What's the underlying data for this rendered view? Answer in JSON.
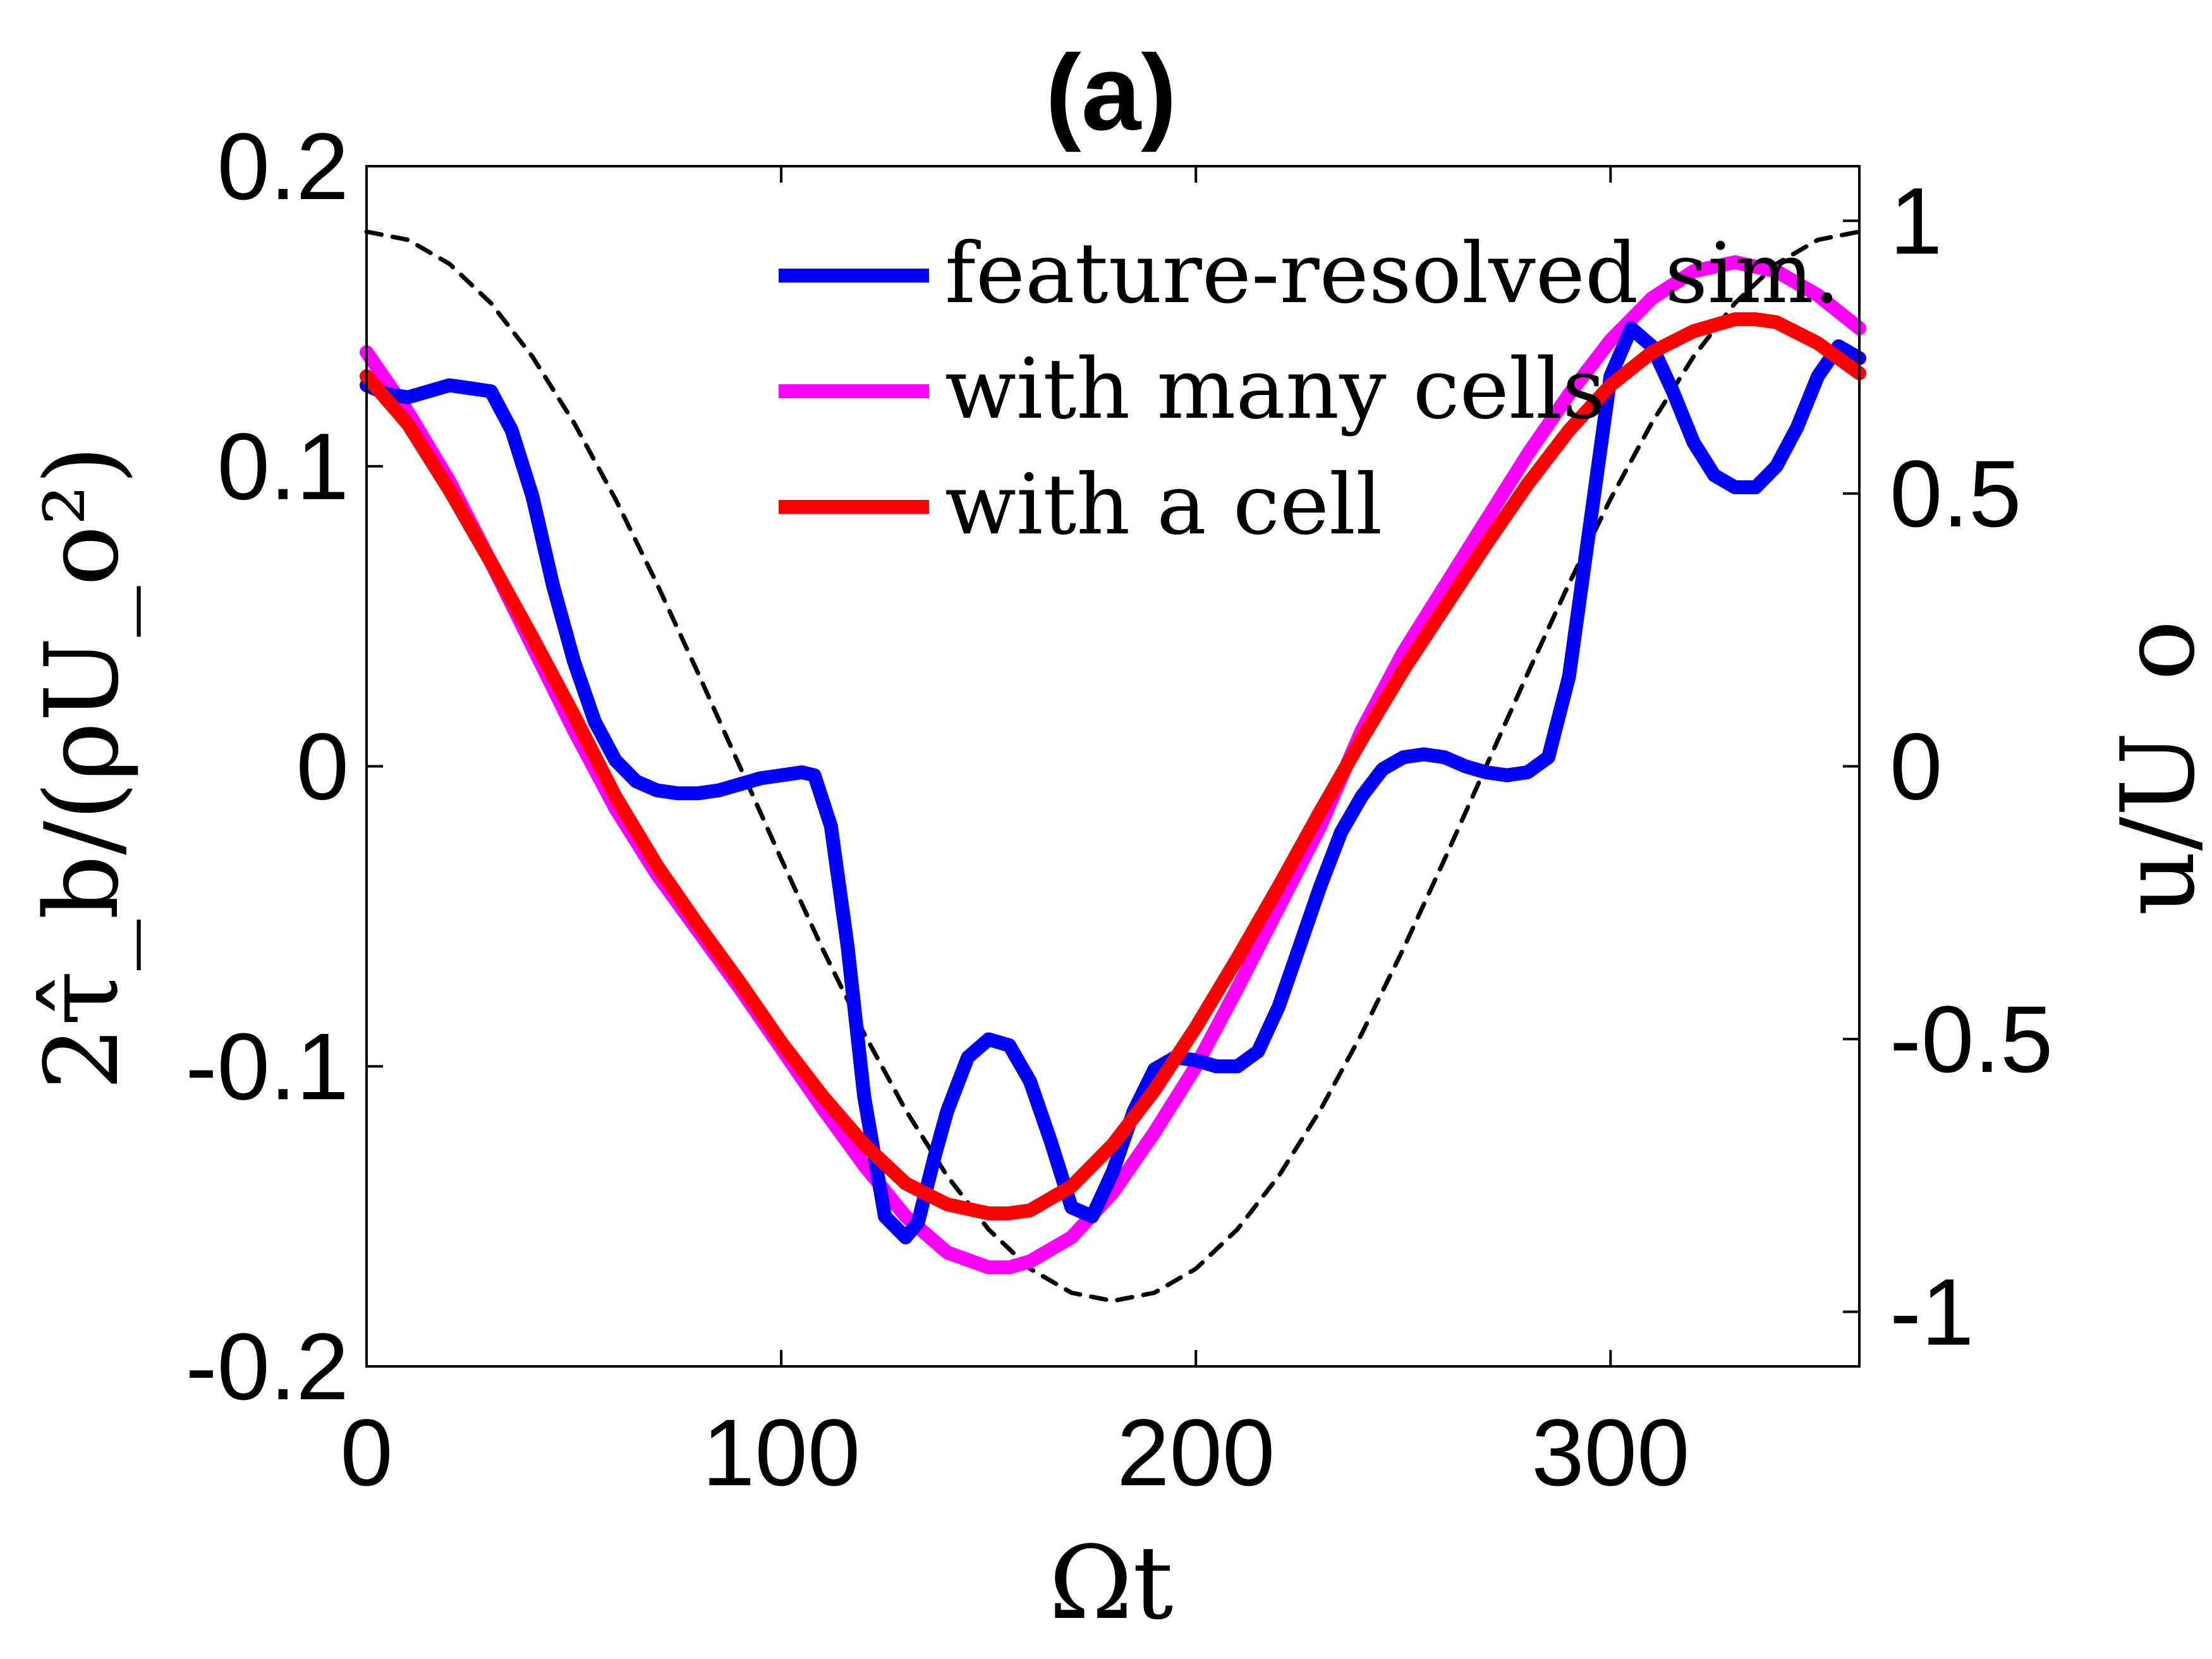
{
  "chart_data": {
    "type": "line",
    "title": "(a)",
    "xlabel": "Ωt",
    "ylabel": "2τ̂_b/(ρU_o²)",
    "y2label": "u/U_o",
    "xlim": [
      0,
      360
    ],
    "ylim": [
      -0.2,
      0.2
    ],
    "y2lim": [
      -1.1,
      1.1
    ],
    "xticks": [
      "0",
      "100",
      "200",
      "300"
    ],
    "xtick_values": [
      0,
      100,
      200,
      300
    ],
    "yticks": [
      "-0.2",
      "-0.1",
      "0",
      "0.1",
      "0.2"
    ],
    "ytick_values": [
      -0.2,
      -0.1,
      0,
      0.1,
      0.2
    ],
    "y2ticks": [
      "-1",
      "-0.5",
      "0",
      "0.5",
      "1"
    ],
    "y2tick_values": [
      -1,
      -0.5,
      0,
      0.5,
      1
    ],
    "grid": false,
    "legend_position": "top-right",
    "series": [
      {
        "name": "feature-resolved sim.",
        "color": "#0000ff",
        "axis": "left",
        "x": [
          0,
          5,
          10,
          15,
          20,
          25,
          30,
          35,
          40,
          45,
          50,
          55,
          60,
          65,
          70,
          75,
          80,
          85,
          90,
          95,
          100,
          105,
          108,
          112,
          116,
          120,
          125,
          130,
          133,
          137,
          140,
          145,
          150,
          155,
          160,
          165,
          170,
          175,
          180,
          185,
          190,
          195,
          200,
          205,
          210,
          215,
          220,
          225,
          230,
          235,
          240,
          245,
          250,
          255,
          260,
          265,
          270,
          275,
          280,
          285,
          290,
          295,
          300,
          305,
          310,
          315,
          320,
          325,
          330,
          335,
          340,
          345,
          350,
          355,
          360
        ],
        "y": [
          0.127,
          0.124,
          0.123,
          0.125,
          0.127,
          0.126,
          0.125,
          0.112,
          0.09,
          0.06,
          0.035,
          0.015,
          0.002,
          -0.005,
          -0.008,
          -0.009,
          -0.009,
          -0.008,
          -0.006,
          -0.004,
          -0.003,
          -0.002,
          -0.003,
          -0.02,
          -0.06,
          -0.11,
          -0.15,
          -0.157,
          -0.152,
          -0.13,
          -0.115,
          -0.097,
          -0.091,
          -0.093,
          -0.105,
          -0.125,
          -0.147,
          -0.15,
          -0.135,
          -0.115,
          -0.101,
          -0.097,
          -0.098,
          -0.1,
          -0.1,
          -0.095,
          -0.08,
          -0.06,
          -0.04,
          -0.022,
          -0.01,
          -0.001,
          0.003,
          0.004,
          0.003,
          0.0,
          -0.002,
          -0.003,
          -0.002,
          0.003,
          0.03,
          0.08,
          0.13,
          0.146,
          0.14,
          0.125,
          0.108,
          0.097,
          0.093,
          0.093,
          0.1,
          0.113,
          0.13,
          0.14,
          0.136
        ]
      },
      {
        "name": "with many cells",
        "color": "#ff00ff",
        "axis": "left",
        "x": [
          0,
          10,
          20,
          30,
          40,
          50,
          60,
          70,
          80,
          90,
          100,
          110,
          120,
          130,
          140,
          150,
          155,
          160,
          170,
          180,
          190,
          200,
          210,
          220,
          230,
          240,
          250,
          260,
          270,
          280,
          290,
          300,
          310,
          320,
          330,
          340,
          350,
          360
        ],
        "y": [
          0.138,
          0.118,
          0.095,
          0.068,
          0.04,
          0.012,
          -0.014,
          -0.036,
          -0.055,
          -0.074,
          -0.094,
          -0.114,
          -0.133,
          -0.15,
          -0.162,
          -0.167,
          -0.167,
          -0.165,
          -0.157,
          -0.142,
          -0.122,
          -0.1,
          -0.074,
          -0.047,
          -0.02,
          0.012,
          0.038,
          0.06,
          0.082,
          0.104,
          0.124,
          0.142,
          0.156,
          0.165,
          0.168,
          0.165,
          0.157,
          0.146
        ]
      },
      {
        "name": "with a cell",
        "color": "#ff0000",
        "axis": "left",
        "x": [
          0,
          10,
          20,
          30,
          40,
          50,
          60,
          70,
          80,
          90,
          100,
          110,
          120,
          130,
          140,
          150,
          155,
          160,
          170,
          180,
          190,
          200,
          210,
          220,
          230,
          240,
          250,
          260,
          270,
          280,
          290,
          300,
          310,
          320,
          330,
          335,
          340,
          350,
          360
        ],
        "y": [
          0.13,
          0.114,
          0.092,
          0.068,
          0.043,
          0.017,
          -0.01,
          -0.033,
          -0.053,
          -0.072,
          -0.092,
          -0.11,
          -0.126,
          -0.139,
          -0.146,
          -0.149,
          -0.149,
          -0.148,
          -0.14,
          -0.126,
          -0.108,
          -0.087,
          -0.064,
          -0.04,
          -0.015,
          0.009,
          0.032,
          0.053,
          0.074,
          0.094,
          0.112,
          0.127,
          0.138,
          0.145,
          0.149,
          0.149,
          0.148,
          0.141,
          0.131
        ]
      },
      {
        "name": "",
        "color": "#000000",
        "axis": "right",
        "dashed": true,
        "x": [
          0,
          10,
          20,
          30,
          40,
          50,
          60,
          70,
          80,
          90,
          100,
          110,
          120,
          130,
          140,
          150,
          160,
          170,
          180,
          190,
          200,
          210,
          220,
          230,
          240,
          250,
          260,
          270,
          280,
          290,
          300,
          310,
          320,
          330,
          340,
          350,
          360
        ],
        "y": [
          0.98,
          0.965,
          0.921,
          0.849,
          0.751,
          0.63,
          0.49,
          0.335,
          0.17,
          0.0,
          -0.17,
          -0.335,
          -0.49,
          -0.63,
          -0.751,
          -0.849,
          -0.921,
          -0.965,
          -0.98,
          -0.965,
          -0.921,
          -0.849,
          -0.751,
          -0.63,
          -0.49,
          -0.335,
          -0.17,
          0.0,
          0.17,
          0.335,
          0.49,
          0.63,
          0.751,
          0.849,
          0.921,
          0.965,
          0.98
        ]
      }
    ]
  }
}
